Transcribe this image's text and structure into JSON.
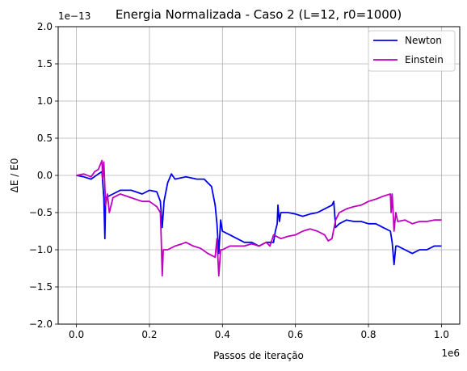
{
  "chart_data": {
    "type": "line",
    "title": "Energia Normalizada - Caso 2 (L=12, r0=1000)",
    "xlabel": "Passos de iteração",
    "ylabel": "ΔE / E0",
    "x_offset_label": "1e6",
    "y_offset_label": "1e−13",
    "xlim": [
      -0.05,
      1.05
    ],
    "ylim": [
      -2.0,
      2.0
    ],
    "x_ticks": [
      0.0,
      0.2,
      0.4,
      0.6,
      0.8,
      1.0
    ],
    "x_tick_labels": [
      "0.0",
      "0.2",
      "0.4",
      "0.6",
      "0.8",
      "1.0"
    ],
    "y_ticks": [
      -2.0,
      -1.5,
      -1.0,
      -0.5,
      0.0,
      0.5,
      1.0,
      1.5,
      2.0
    ],
    "y_tick_labels": [
      "−2.0",
      "−1.5",
      "−1.0",
      "−0.5",
      "0.0",
      "0.5",
      "1.0",
      "1.5",
      "2.0"
    ],
    "grid": true,
    "legend_position": "top-right",
    "series": [
      {
        "name": "Newton",
        "color": "#0000ee",
        "points": [
          [
            0.0,
            0.0
          ],
          [
            0.02,
            -0.02
          ],
          [
            0.04,
            -0.05
          ],
          [
            0.06,
            0.02
          ],
          [
            0.07,
            0.05
          ],
          [
            0.075,
            -0.3
          ],
          [
            0.078,
            -0.85
          ],
          [
            0.08,
            -0.3
          ],
          [
            0.1,
            -0.25
          ],
          [
            0.12,
            -0.2
          ],
          [
            0.15,
            -0.2
          ],
          [
            0.18,
            -0.25
          ],
          [
            0.2,
            -0.2
          ],
          [
            0.22,
            -0.22
          ],
          [
            0.23,
            -0.35
          ],
          [
            0.235,
            -0.7
          ],
          [
            0.24,
            -0.35
          ],
          [
            0.25,
            -0.1
          ],
          [
            0.26,
            0.02
          ],
          [
            0.27,
            -0.05
          ],
          [
            0.3,
            -0.02
          ],
          [
            0.33,
            -0.05
          ],
          [
            0.35,
            -0.05
          ],
          [
            0.37,
            -0.15
          ],
          [
            0.38,
            -0.4
          ],
          [
            0.385,
            -0.65
          ],
          [
            0.39,
            -1.05
          ],
          [
            0.395,
            -0.6
          ],
          [
            0.4,
            -0.75
          ],
          [
            0.42,
            -0.8
          ],
          [
            0.44,
            -0.85
          ],
          [
            0.46,
            -0.9
          ],
          [
            0.48,
            -0.9
          ],
          [
            0.5,
            -0.95
          ],
          [
            0.52,
            -0.9
          ],
          [
            0.54,
            -0.9
          ],
          [
            0.545,
            -0.75
          ],
          [
            0.55,
            -0.65
          ],
          [
            0.552,
            -0.4
          ],
          [
            0.556,
            -0.62
          ],
          [
            0.56,
            -0.5
          ],
          [
            0.58,
            -0.5
          ],
          [
            0.6,
            -0.52
          ],
          [
            0.62,
            -0.55
          ],
          [
            0.64,
            -0.52
          ],
          [
            0.66,
            -0.5
          ],
          [
            0.68,
            -0.45
          ],
          [
            0.7,
            -0.4
          ],
          [
            0.705,
            -0.35
          ],
          [
            0.71,
            -0.7
          ],
          [
            0.72,
            -0.65
          ],
          [
            0.74,
            -0.6
          ],
          [
            0.76,
            -0.62
          ],
          [
            0.78,
            -0.62
          ],
          [
            0.8,
            -0.65
          ],
          [
            0.82,
            -0.65
          ],
          [
            0.84,
            -0.7
          ],
          [
            0.86,
            -0.75
          ],
          [
            0.865,
            -0.9
          ],
          [
            0.87,
            -1.2
          ],
          [
            0.875,
            -0.95
          ],
          [
            0.88,
            -0.95
          ],
          [
            0.9,
            -1.0
          ],
          [
            0.92,
            -1.05
          ],
          [
            0.94,
            -1.0
          ],
          [
            0.96,
            -1.0
          ],
          [
            0.98,
            -0.95
          ],
          [
            1.0,
            -0.95
          ]
        ]
      },
      {
        "name": "Einstein",
        "color": "#bf00bf",
        "points": [
          [
            0.0,
            0.0
          ],
          [
            0.02,
            0.02
          ],
          [
            0.04,
            -0.02
          ],
          [
            0.05,
            0.05
          ],
          [
            0.06,
            0.08
          ],
          [
            0.07,
            0.2
          ],
          [
            0.072,
            -0.05
          ],
          [
            0.075,
            0.18
          ],
          [
            0.08,
            -0.4
          ],
          [
            0.085,
            -0.25
          ],
          [
            0.09,
            -0.5
          ],
          [
            0.1,
            -0.3
          ],
          [
            0.12,
            -0.25
          ],
          [
            0.15,
            -0.3
          ],
          [
            0.18,
            -0.35
          ],
          [
            0.2,
            -0.35
          ],
          [
            0.22,
            -0.42
          ],
          [
            0.23,
            -0.5
          ],
          [
            0.232,
            -0.8
          ],
          [
            0.235,
            -1.35
          ],
          [
            0.238,
            -1.0
          ],
          [
            0.25,
            -1.0
          ],
          [
            0.27,
            -0.95
          ],
          [
            0.29,
            -0.92
          ],
          [
            0.3,
            -0.9
          ],
          [
            0.32,
            -0.95
          ],
          [
            0.34,
            -0.98
          ],
          [
            0.36,
            -1.05
          ],
          [
            0.38,
            -1.1
          ],
          [
            0.385,
            -0.85
          ],
          [
            0.39,
            -1.35
          ],
          [
            0.395,
            -1.0
          ],
          [
            0.4,
            -1.0
          ],
          [
            0.42,
            -0.95
          ],
          [
            0.44,
            -0.95
          ],
          [
            0.46,
            -0.95
          ],
          [
            0.48,
            -0.92
          ],
          [
            0.5,
            -0.95
          ],
          [
            0.52,
            -0.9
          ],
          [
            0.53,
            -0.95
          ],
          [
            0.54,
            -0.8
          ],
          [
            0.56,
            -0.85
          ],
          [
            0.58,
            -0.82
          ],
          [
            0.6,
            -0.8
          ],
          [
            0.62,
            -0.75
          ],
          [
            0.64,
            -0.72
          ],
          [
            0.66,
            -0.75
          ],
          [
            0.68,
            -0.8
          ],
          [
            0.69,
            -0.88
          ],
          [
            0.7,
            -0.85
          ],
          [
            0.71,
            -0.6
          ],
          [
            0.72,
            -0.5
          ],
          [
            0.74,
            -0.45
          ],
          [
            0.76,
            -0.42
          ],
          [
            0.78,
            -0.4
          ],
          [
            0.8,
            -0.35
          ],
          [
            0.82,
            -0.32
          ],
          [
            0.84,
            -0.28
          ],
          [
            0.86,
            -0.25
          ],
          [
            0.862,
            -0.5
          ],
          [
            0.865,
            -0.25
          ],
          [
            0.868,
            -0.55
          ],
          [
            0.87,
            -0.75
          ],
          [
            0.875,
            -0.5
          ],
          [
            0.88,
            -0.62
          ],
          [
            0.9,
            -0.6
          ],
          [
            0.92,
            -0.65
          ],
          [
            0.94,
            -0.62
          ],
          [
            0.96,
            -0.62
          ],
          [
            0.98,
            -0.6
          ],
          [
            1.0,
            -0.6
          ]
        ]
      }
    ]
  }
}
